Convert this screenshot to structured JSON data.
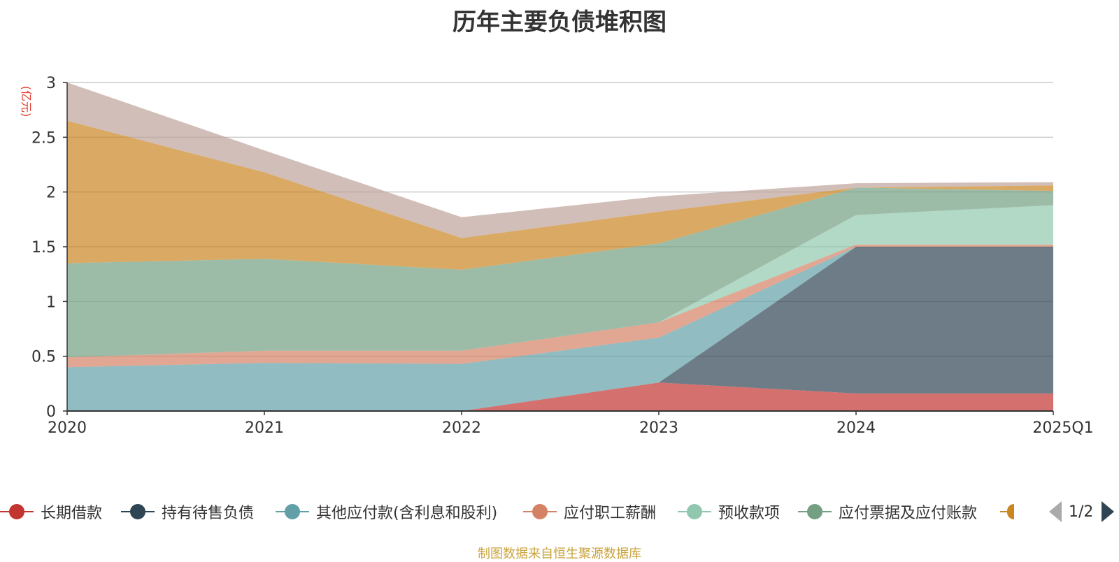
{
  "chart_data": {
    "type": "area",
    "title": "历年主要负债堆积图",
    "unit_label": "(亿元)",
    "stacked": true,
    "categories": [
      "2020",
      "2021",
      "2022",
      "2023",
      "2024",
      "2025Q1"
    ],
    "ylim": [
      0,
      3
    ],
    "yticks": [
      "0",
      "0.5",
      "1",
      "1.5",
      "2",
      "2.5",
      "3"
    ],
    "grid": true,
    "series": [
      {
        "name": "长期借款",
        "color": "#c23531",
        "values": [
          0,
          0,
          0,
          0.26,
          0.16,
          0.16
        ]
      },
      {
        "name": "持有待售负债",
        "color": "#2f4554",
        "values": [
          0,
          0,
          0,
          0,
          1.34,
          1.34
        ]
      },
      {
        "name": "其他应付款(含利息和股利)",
        "color": "#61a0a8",
        "values": [
          0.4,
          0.44,
          0.43,
          0.41,
          0,
          0
        ]
      },
      {
        "name": "应付职工薪酬",
        "color": "#d48265",
        "values": [
          0.09,
          0.11,
          0.12,
          0.14,
          0.02,
          0.02
        ]
      },
      {
        "name": "预收款项",
        "color": "#91c7ae",
        "values": [
          0,
          0,
          0,
          0,
          0.27,
          0.36
        ]
      },
      {
        "name": "应付票据及应付账款",
        "color": "#749f83",
        "values": [
          0.86,
          0.84,
          0.74,
          0.72,
          0.25,
          0.13
        ]
      },
      {
        "name": "",
        "color": "#ca8622",
        "values": [
          1.3,
          0.79,
          0.29,
          0.29,
          0,
          0.05
        ]
      },
      {
        "name": "",
        "color": "#bda29a",
        "values": [
          0.35,
          0.2,
          0.19,
          0.14,
          0.04,
          0.03
        ]
      }
    ]
  },
  "legend": {
    "items": [
      {
        "label": "长期借款",
        "color": "#c23531"
      },
      {
        "label": "持有待售负债",
        "color": "#2f4554"
      },
      {
        "label": "其他应付款(含利息和股利)",
        "color": "#61a0a8"
      },
      {
        "label": "应付职工薪酬",
        "color": "#d48265"
      },
      {
        "label": "预收款项",
        "color": "#91c7ae"
      },
      {
        "label": "应付票据及应付账款",
        "color": "#749f83"
      }
    ],
    "partial_item_color": "#ca8622",
    "page_text": "1/2"
  },
  "source_note": "制图数据来自恒生聚源数据库"
}
